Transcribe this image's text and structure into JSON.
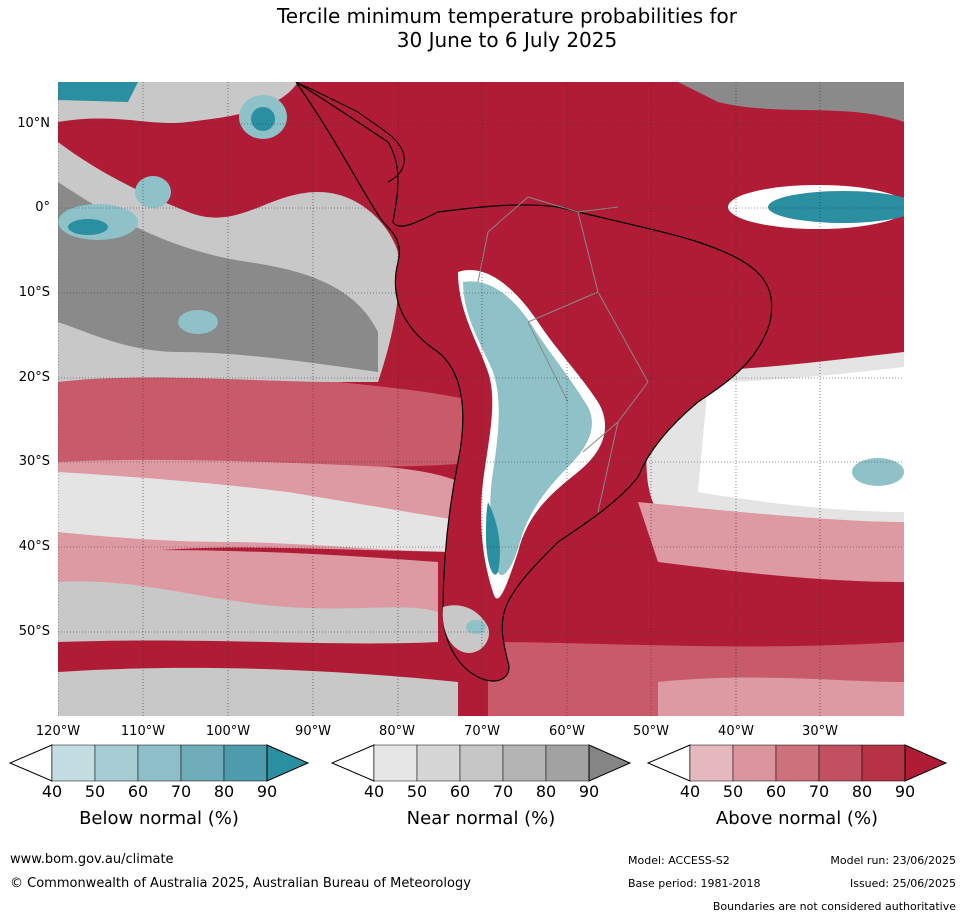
{
  "title_line1": "Tercile minimum temperature probabilities for",
  "title_line2": "30 June to 6 July 2025",
  "map": {
    "lat_labels": [
      "10°N",
      "0°",
      "10°S",
      "20°S",
      "30°S",
      "40°S",
      "50°S"
    ],
    "lon_labels": [
      "120°W",
      "110°W",
      "100°W",
      "90°W",
      "80°W",
      "70°W",
      "60°W",
      "50°W",
      "40°W",
      "30°W"
    ],
    "colors": {
      "above_90": "#b01c36",
      "above_70": "#c95a6a",
      "above_50": "#dd9aa3",
      "near_60": "#c8c8c8",
      "near_80": "#8a8a8a",
      "near_40": "#e4e4e4",
      "below_60": "#8fc1c8",
      "below_90": "#2a8fa0",
      "land_outline": "#000000",
      "border_outline": "#888888"
    }
  },
  "colorbars": [
    {
      "title": "Below normal (%)",
      "ticks": [
        "40",
        "50",
        "60",
        "70",
        "80",
        "90"
      ],
      "colors": [
        "#c4dde2",
        "#a6cdd4",
        "#8ebfc8",
        "#6fadb9",
        "#4c9cad",
        "#2a8fa0"
      ]
    },
    {
      "title": "Near normal (%)",
      "ticks": [
        "40",
        "50",
        "60",
        "70",
        "80",
        "90"
      ],
      "colors": [
        "#e6e6e6",
        "#d6d6d6",
        "#c6c6c6",
        "#b4b4b4",
        "#a2a2a2",
        "#858585"
      ]
    },
    {
      "title": "Above normal (%)",
      "ticks": [
        "40",
        "50",
        "60",
        "70",
        "80",
        "90"
      ],
      "colors": [
        "#e4b8bd",
        "#d9949c",
        "#cd717d",
        "#c15160",
        "#b63347",
        "#b01c36"
      ]
    }
  ],
  "footer": {
    "website": "www.bom.gov.au/climate",
    "copyright": "© Commonwealth of Australia 2025, Australian Bureau of Meteorology",
    "model": "Model: ACCESS-S2",
    "base_period": "Base period: 1981-2018",
    "model_run": "Model run: 23/06/2025",
    "issued": "Issued: 25/06/2025",
    "boundaries": "Boundaries are not considered authoritative"
  }
}
